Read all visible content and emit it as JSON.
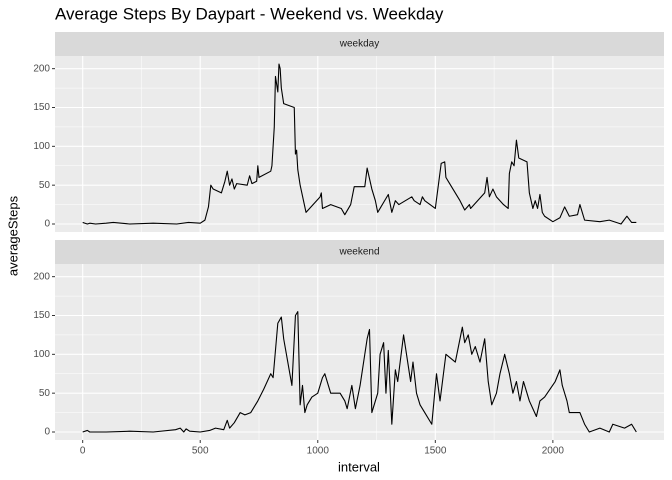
{
  "chart_data": {
    "type": "line",
    "title": "Average Steps By Daypart - Weekend vs. Weekday",
    "x_label": "interval",
    "y_label": "averageSteps",
    "color": "#000000",
    "grid": true,
    "xlim": [
      -117.75,
      2472.75
    ],
    "xticks": [
      0,
      500,
      1000,
      1500,
      2000
    ],
    "ylim": [
      -10.3,
      216.3
    ],
    "yticks": [
      0,
      50,
      100,
      150,
      200
    ],
    "facets": [
      {
        "name": "weekday",
        "x": [
          0,
          10,
          20,
          30,
          55,
          100,
          130,
          200,
          300,
          400,
          450,
          500,
          520,
          535,
          545,
          555,
          590,
          605,
          615,
          625,
          635,
          645,
          655,
          700,
          710,
          720,
          740,
          745,
          750,
          800,
          805,
          815,
          820,
          830,
          835,
          840,
          845,
          855,
          900,
          905,
          910,
          915,
          925,
          950,
          1010,
          1015,
          1020,
          1055,
          1100,
          1115,
          1140,
          1155,
          1200,
          1210,
          1230,
          1245,
          1255,
          1300,
          1315,
          1330,
          1345,
          1400,
          1410,
          1435,
          1445,
          1455,
          1500,
          1525,
          1540,
          1545,
          1555,
          1605,
          1625,
          1645,
          1650,
          1710,
          1720,
          1730,
          1745,
          1760,
          1790,
          1810,
          1815,
          1825,
          1835,
          1845,
          1855,
          1890,
          1900,
          1915,
          1925,
          1935,
          1945,
          1955,
          1965,
          2000,
          2030,
          2050,
          2070,
          2105,
          2115,
          2135,
          2200,
          2240,
          2290,
          2315,
          2335,
          2355
        ],
        "values": [
          2,
          1,
          0,
          1,
          0,
          1,
          2,
          0,
          1,
          0,
          2,
          1,
          5,
          22,
          50,
          45,
          40,
          55,
          68,
          50,
          58,
          45,
          52,
          50,
          62,
          52,
          55,
          75,
          60,
          68,
          75,
          125,
          190,
          170,
          206,
          200,
          175,
          155,
          150,
          90,
          95,
          70,
          50,
          15,
          35,
          40,
          20,
          25,
          20,
          12,
          25,
          48,
          48,
          72,
          45,
          30,
          15,
          38,
          15,
          30,
          25,
          35,
          30,
          25,
          35,
          30,
          20,
          78,
          80,
          60,
          55,
          30,
          18,
          25,
          20,
          40,
          60,
          35,
          45,
          35,
          25,
          20,
          65,
          80,
          75,
          108,
          85,
          80,
          40,
          20,
          30,
          20,
          38,
          15,
          10,
          3,
          8,
          22,
          10,
          12,
          25,
          5,
          3,
          5,
          0,
          10,
          2,
          2
        ]
      },
      {
        "name": "weekend",
        "x": [
          0,
          20,
          30,
          100,
          200,
          300,
          395,
          415,
          430,
          440,
          455,
          500,
          540,
          565,
          600,
          615,
          625,
          645,
          670,
          690,
          715,
          745,
          770,
          800,
          810,
          830,
          845,
          855,
          890,
          905,
          915,
          925,
          935,
          945,
          955,
          975,
          1000,
          1020,
          1030,
          1055,
          1095,
          1115,
          1125,
          1145,
          1160,
          1180,
          1200,
          1210,
          1220,
          1230,
          1255,
          1265,
          1280,
          1290,
          1300,
          1315,
          1330,
          1340,
          1365,
          1395,
          1405,
          1420,
          1435,
          1455,
          1485,
          1505,
          1520,
          1545,
          1585,
          1615,
          1625,
          1640,
          1655,
          1670,
          1690,
          1710,
          1725,
          1740,
          1760,
          1775,
          1795,
          1815,
          1830,
          1845,
          1860,
          1875,
          1890,
          1900,
          1930,
          1945,
          1965,
          2010,
          2030,
          2040,
          2060,
          2070,
          2115,
          2135,
          2155,
          2200,
          2240,
          2255,
          2305,
          2335,
          2355
        ],
        "values": [
          0,
          2,
          0,
          0,
          1,
          0,
          3,
          5,
          0,
          4,
          1,
          0,
          2,
          5,
          3,
          15,
          5,
          12,
          25,
          22,
          25,
          40,
          55,
          75,
          70,
          140,
          148,
          120,
          60,
          150,
          155,
          35,
          60,
          25,
          35,
          45,
          50,
          70,
          75,
          50,
          50,
          40,
          30,
          60,
          30,
          60,
          100,
          120,
          132,
          25,
          50,
          100,
          115,
          50,
          105,
          10,
          80,
          65,
          125,
          65,
          90,
          50,
          35,
          25,
          10,
          75,
          40,
          100,
          90,
          135,
          115,
          125,
          100,
          110,
          90,
          120,
          65,
          35,
          50,
          75,
          100,
          75,
          50,
          65,
          40,
          65,
          50,
          40,
          20,
          40,
          45,
          65,
          80,
          60,
          40,
          25,
          25,
          10,
          0,
          5,
          0,
          10,
          5,
          10,
          0
        ]
      }
    ]
  }
}
